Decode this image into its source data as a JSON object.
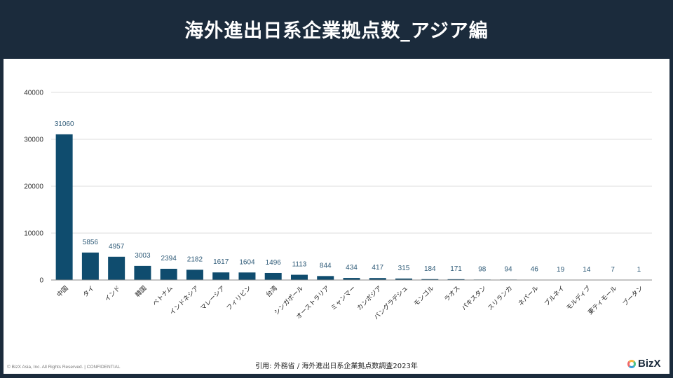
{
  "header": {
    "title": "海外進出日系企業拠点数_アジア編"
  },
  "footer": {
    "copyright": "© BizX Asia, Inc. All Rights Reserved. | CONFIDENTIAL",
    "source": "引用: 外務省 / 海外進出日系企業拠点数調査2023年",
    "logo": "BizX"
  },
  "chart_data": {
    "type": "bar",
    "title": "",
    "xlabel": "",
    "ylabel": "",
    "ylim": [
      0,
      40000
    ],
    "yticks": [
      0,
      10000,
      20000,
      30000,
      40000
    ],
    "grid": true,
    "bar_color": "#0f4c6e",
    "categories": [
      "中国",
      "タイ",
      "インド",
      "韓国",
      "ベトナム",
      "インドネシア",
      "マレーシア",
      "フィリピン",
      "台湾",
      "シンガポール",
      "オーストラリア",
      "ミャンマー",
      "カンボジア",
      "バングラデシュ",
      "モンゴル",
      "ラオス",
      "パキスタン",
      "スリランカ",
      "ネパール",
      "ブルネイ",
      "モルディブ",
      "東ティモール",
      "ブータン"
    ],
    "values": [
      31060,
      5856,
      4957,
      3003,
      2394,
      2182,
      1617,
      1604,
      1496,
      1113,
      844,
      434,
      417,
      315,
      184,
      171,
      98,
      94,
      46,
      19,
      14,
      7,
      1
    ]
  }
}
